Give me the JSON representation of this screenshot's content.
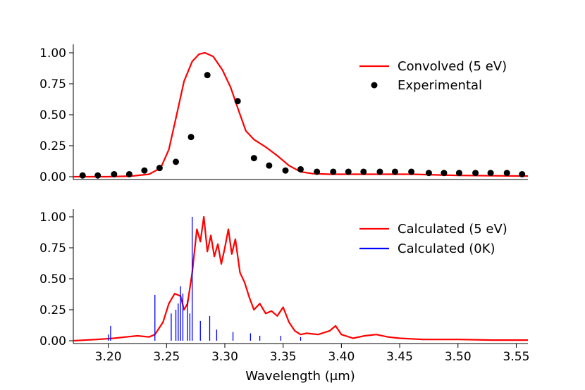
{
  "chart_data": [
    {
      "type": "line",
      "panel": "top",
      "title": "",
      "xlabel": "",
      "ylabel": "",
      "xlim": [
        3.17,
        3.56
      ],
      "ylim": [
        0.0,
        1.0
      ],
      "yticks": [
        0.0,
        0.25,
        0.5,
        0.75,
        1.0
      ],
      "ytick_labels": [
        "0.00",
        "0.25",
        "0.50",
        "0.75",
        "1.00"
      ],
      "legend_position": "top-right",
      "series": [
        {
          "name": "Convolved (5 eV)",
          "kind": "line",
          "color": "#ff0000",
          "x": [
            3.17,
            3.2,
            3.22,
            3.235,
            3.245,
            3.252,
            3.258,
            3.265,
            3.272,
            3.278,
            3.283,
            3.29,
            3.298,
            3.305,
            3.312,
            3.318,
            3.325,
            3.335,
            3.345,
            3.355,
            3.365,
            3.375,
            3.39,
            3.42,
            3.46,
            3.5,
            3.56
          ],
          "y": [
            0.0,
            0.0,
            0.005,
            0.02,
            0.07,
            0.22,
            0.47,
            0.77,
            0.93,
            0.99,
            1.0,
            0.97,
            0.86,
            0.72,
            0.53,
            0.37,
            0.3,
            0.24,
            0.17,
            0.09,
            0.04,
            0.025,
            0.02,
            0.02,
            0.02,
            0.01,
            0.005
          ]
        },
        {
          "name": "Experimental",
          "kind": "scatter",
          "color": "#000000",
          "x": [
            3.178,
            3.191,
            3.205,
            3.218,
            3.231,
            3.244,
            3.258,
            3.271,
            3.285,
            3.311,
            3.325,
            3.338,
            3.352,
            3.365,
            3.379,
            3.393,
            3.406,
            3.419,
            3.433,
            3.446,
            3.46,
            3.475,
            3.488,
            3.501,
            3.515,
            3.528,
            3.542,
            3.555
          ],
          "y": [
            0.01,
            0.01,
            0.02,
            0.02,
            0.05,
            0.07,
            0.12,
            0.32,
            0.82,
            0.61,
            0.15,
            0.09,
            0.05,
            0.06,
            0.04,
            0.04,
            0.04,
            0.04,
            0.04,
            0.04,
            0.04,
            0.03,
            0.03,
            0.03,
            0.03,
            0.03,
            0.03,
            0.02
          ]
        }
      ]
    },
    {
      "type": "line",
      "panel": "bottom",
      "title": "",
      "xlabel": "Wavelength (μm)",
      "ylabel": "",
      "xlim": [
        3.17,
        3.56
      ],
      "ylim": [
        0.0,
        1.0
      ],
      "xticks": [
        3.2,
        3.25,
        3.3,
        3.35,
        3.4,
        3.45,
        3.5,
        3.55
      ],
      "xtick_labels": [
        "3.20",
        "3.25",
        "3.30",
        "3.35",
        "3.40",
        "3.45",
        "3.50",
        "3.55"
      ],
      "yticks": [
        0.0,
        0.25,
        0.5,
        0.75,
        1.0
      ],
      "ytick_labels": [
        "0.00",
        "0.25",
        "0.50",
        "0.75",
        "1.00"
      ],
      "legend_position": "top-right",
      "series": [
        {
          "name": "Calculated (5 eV)",
          "kind": "line",
          "color": "#ff0000",
          "x": [
            3.17,
            3.19,
            3.205,
            3.215,
            3.225,
            3.235,
            3.24,
            3.247,
            3.252,
            3.257,
            3.262,
            3.265,
            3.268,
            3.272,
            3.276,
            3.279,
            3.282,
            3.285,
            3.288,
            3.291,
            3.294,
            3.297,
            3.3,
            3.303,
            3.306,
            3.309,
            3.313,
            3.317,
            3.321,
            3.325,
            3.33,
            3.335,
            3.34,
            3.345,
            3.35,
            3.355,
            3.36,
            3.365,
            3.37,
            3.38,
            3.39,
            3.395,
            3.4,
            3.41,
            3.42,
            3.43,
            3.44,
            3.45,
            3.47,
            3.5,
            3.53,
            3.56
          ],
          "y": [
            0.0,
            0.01,
            0.02,
            0.03,
            0.04,
            0.03,
            0.05,
            0.15,
            0.3,
            0.38,
            0.36,
            0.25,
            0.3,
            0.55,
            0.9,
            0.8,
            1.0,
            0.72,
            0.85,
            0.68,
            0.78,
            0.62,
            0.75,
            0.9,
            0.7,
            0.82,
            0.55,
            0.47,
            0.35,
            0.25,
            0.3,
            0.22,
            0.24,
            0.2,
            0.27,
            0.15,
            0.08,
            0.05,
            0.06,
            0.05,
            0.08,
            0.12,
            0.05,
            0.02,
            0.04,
            0.05,
            0.03,
            0.02,
            0.01,
            0.01,
            0.005,
            0.005
          ]
        },
        {
          "name": "Calculated (0K)",
          "kind": "stick",
          "color": "#0000ff",
          "x": [
            3.2,
            3.202,
            3.24,
            3.254,
            3.258,
            3.26,
            3.262,
            3.264,
            3.268,
            3.27,
            3.272,
            3.279,
            3.287,
            3.293,
            3.307,
            3.322,
            3.33,
            3.348,
            3.365
          ],
          "y": [
            0.05,
            0.12,
            0.37,
            0.22,
            0.25,
            0.3,
            0.44,
            0.38,
            0.33,
            0.22,
            1.0,
            0.16,
            0.2,
            0.09,
            0.07,
            0.06,
            0.04,
            0.04,
            0.03
          ]
        }
      ]
    }
  ]
}
